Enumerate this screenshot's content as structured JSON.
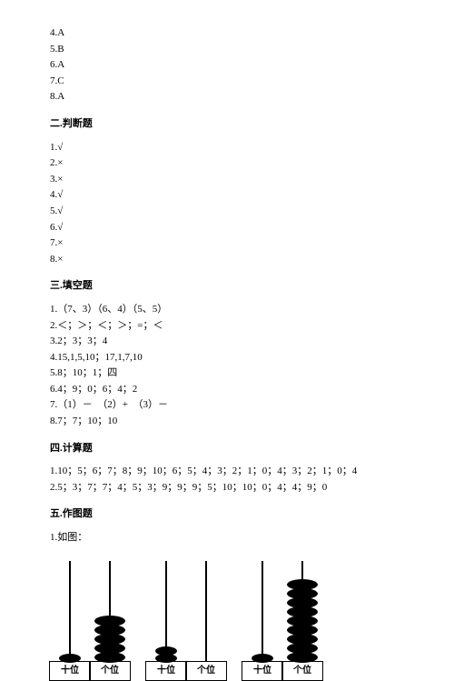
{
  "mcq": [
    "4.A",
    "5.B",
    "6.A",
    "7.C",
    "8.A"
  ],
  "headings": {
    "judge": "二.判断题",
    "fill": "三.填空题",
    "calc": "四.计算题",
    "draw": "五.作图题"
  },
  "judge": [
    "1.√",
    "2.×",
    "3.×",
    "4.√",
    "5.√",
    "6.√",
    "7.×",
    "8.×"
  ],
  "fill": [
    "1.（7、3）（6、4）（5、5）",
    "2.＜；＞；＜；＞；=；＜",
    "3.2；3；3；4",
    "4.15,1,5,10；17,1,7,10",
    "5.8；10；1；四",
    "6.4；9；0；6；4；2",
    "7.（1）－　（2）+　（3）－",
    "8.7；7；10；10"
  ],
  "calc": [
    "1.10；5；6；7；8；9；10；6；5；4；3；2；1；0；4；3；2；1；0；4",
    "2.5；3；7；7；4；5；3；9；9；9；5；10；10；0；4；4；9；0"
  ],
  "draw_label": "1.如图：",
  "abacus": [
    {
      "tens": 1,
      "ones": 5,
      "small_ones": false
    },
    {
      "tens": 2,
      "ones": 0,
      "small_ones": true
    },
    {
      "tens": 1,
      "ones": 9,
      "small_ones": false
    }
  ],
  "col_labels": {
    "tens": "十位",
    "ones": "个位"
  },
  "colors": {
    "ink": "#000000",
    "bg": "#ffffff"
  }
}
